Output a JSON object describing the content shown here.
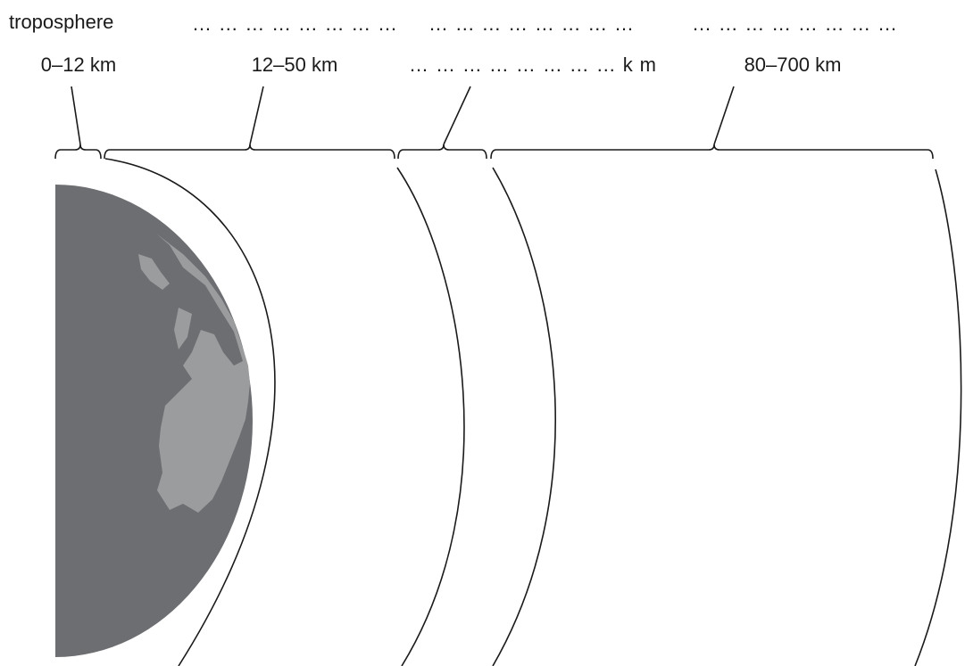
{
  "layers": [
    {
      "name": "troposphere",
      "range": "0–12 km"
    },
    {
      "name": "……………………",
      "range": "12–50 km"
    },
    {
      "name": "……………………",
      "range": "……………………km"
    },
    {
      "name": "……………………",
      "range": "80–700 km"
    }
  ]
}
